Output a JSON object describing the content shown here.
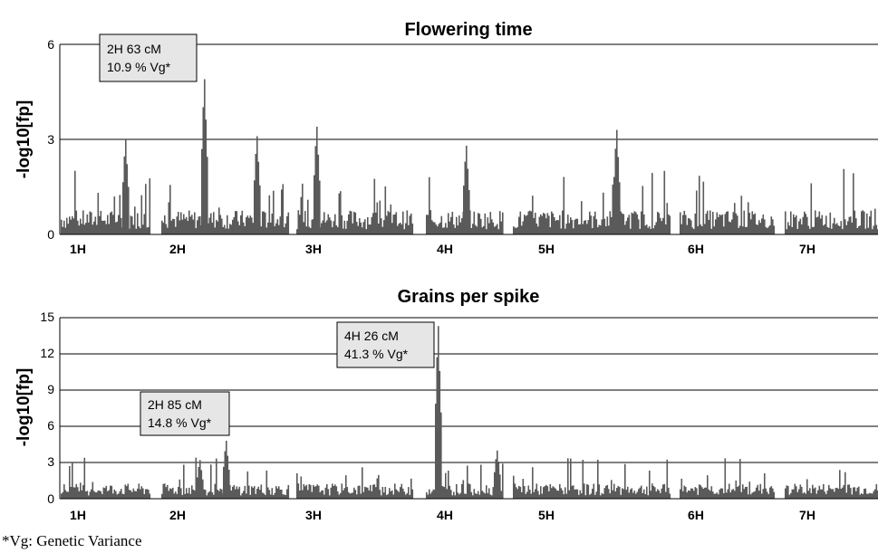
{
  "chart_data": [
    {
      "type": "bar",
      "title": "Flowering time",
      "ylabel": "-log10[fp]",
      "xlabel": "",
      "ylim": [
        0,
        6
      ],
      "yticks": [
        "0",
        "3",
        "6"
      ],
      "grid": true,
      "x_categories": [
        "1H",
        "2H",
        "3H",
        "4H",
        "5H",
        "6H",
        "7H"
      ],
      "annotation": {
        "line1": "2H 63 cM",
        "line2": "10.9 % Vg*"
      },
      "peaks": [
        {
          "chromosome": "2H",
          "value": 4.9
        },
        {
          "chromosome": "1H",
          "value": 3.0
        },
        {
          "chromosome": "2H",
          "value": 3.1
        },
        {
          "chromosome": "3H",
          "value": 3.4
        },
        {
          "chromosome": "4H",
          "value": 2.8
        },
        {
          "chromosome": "5H",
          "value": 3.3
        }
      ]
    },
    {
      "type": "bar",
      "title": "Grains per spike",
      "ylabel": "-log10[fp]",
      "xlabel": "",
      "ylim": [
        0,
        15
      ],
      "yticks": [
        "0",
        "3",
        "6",
        "9",
        "12",
        "15"
      ],
      "grid": true,
      "x_categories": [
        "1H",
        "2H",
        "3H",
        "4H",
        "5H",
        "6H",
        "7H"
      ],
      "annotations": [
        {
          "line1": "4H 26 cM",
          "line2": "41.3 % Vg*"
        },
        {
          "line1": "2H 85 cM",
          "line2": "14.8 % Vg*"
        }
      ],
      "peaks": [
        {
          "chromosome": "4H",
          "value": 14.3
        },
        {
          "chromosome": "2H",
          "value": 4.8
        },
        {
          "chromosome": "4H",
          "value": 4.0
        },
        {
          "chromosome": "2H",
          "value": 3.2
        }
      ]
    }
  ],
  "footnote": "*Vg: Genetic Variance",
  "colors": {
    "bars": "#5a5a5a",
    "axis": "#000000",
    "label_box": "#e6e6e6"
  }
}
